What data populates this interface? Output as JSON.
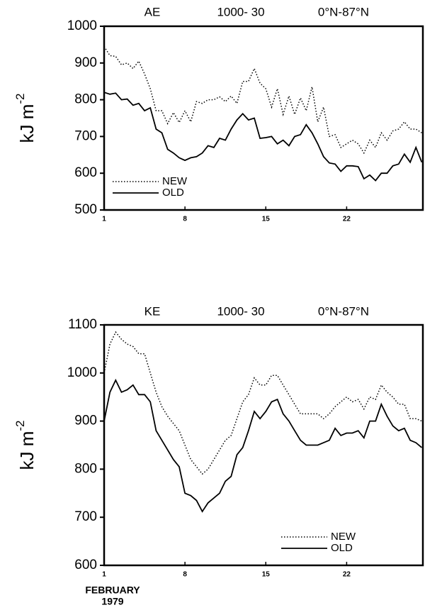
{
  "chart_data": [
    {
      "type": "line",
      "title_parts": [
        "AE",
        "1000- 30",
        "0°N-87°N"
      ],
      "ylabel": "kJ m",
      "ylabel_exponent": "-2",
      "x": [
        1,
        1.5,
        2,
        2.5,
        3,
        3.5,
        4,
        4.5,
        5,
        5.5,
        6,
        6.5,
        7,
        7.5,
        8,
        8.5,
        9,
        9.5,
        10,
        10.5,
        11,
        11.5,
        12,
        12.5,
        13,
        13.5,
        14,
        14.5,
        15,
        15.5,
        16,
        16.5,
        17,
        17.5,
        18,
        18.5,
        19,
        19.5,
        20,
        20.5,
        21,
        21.5,
        22,
        22.5,
        23,
        23.5,
        24,
        24.5,
        25,
        25.5,
        26,
        26.5,
        27,
        27.5,
        28,
        28.5
      ],
      "series": [
        {
          "name": "NEW",
          "color": "#000000",
          "dash": "dotted",
          "values": [
            945,
            920,
            918,
            895,
            900,
            885,
            905,
            870,
            830,
            770,
            770,
            735,
            765,
            738,
            770,
            740,
            795,
            790,
            800,
            800,
            808,
            795,
            810,
            790,
            850,
            850,
            885,
            845,
            830,
            780,
            830,
            760,
            810,
            760,
            805,
            770,
            835,
            740,
            780,
            700,
            705,
            670,
            680,
            690,
            680,
            655,
            690,
            670,
            710,
            690,
            715,
            720,
            740,
            720,
            720,
            710
          ]
        },
        {
          "name": "OLD",
          "color": "#000000",
          "dash": "solid",
          "values": [
            820,
            815,
            818,
            800,
            802,
            785,
            790,
            770,
            778,
            720,
            710,
            665,
            655,
            642,
            635,
            642,
            645,
            655,
            675,
            670,
            695,
            690,
            720,
            745,
            762,
            745,
            750,
            695,
            697,
            700,
            680,
            690,
            675,
            700,
            705,
            732,
            710,
            680,
            645,
            628,
            625,
            605,
            620,
            620,
            618,
            585,
            595,
            580,
            600,
            600,
            620,
            625,
            652,
            630,
            670,
            630
          ]
        }
      ],
      "xlim": [
        1,
        28.6
      ],
      "xticks": [
        1,
        8,
        15,
        22
      ],
      "ylim": [
        500,
        1000
      ],
      "yticks": [
        500,
        600,
        700,
        800,
        900,
        1000
      ],
      "legend": "lower left"
    },
    {
      "type": "line",
      "title_parts": [
        "KE",
        "1000- 30",
        "0°N-87°N"
      ],
      "ylabel": "kJ m",
      "ylabel_exponent": "-2",
      "xlabel": [
        "FEBRUARY",
        "1979"
      ],
      "x": [
        1,
        1.5,
        2,
        2.5,
        3,
        3.5,
        4,
        4.5,
        5,
        5.5,
        6,
        6.5,
        7,
        7.5,
        8,
        8.5,
        9,
        9.5,
        10,
        10.5,
        11,
        11.5,
        12,
        12.5,
        13,
        13.5,
        14,
        14.5,
        15,
        15.5,
        16,
        16.5,
        17,
        17.5,
        18,
        18.5,
        19,
        19.5,
        20,
        20.5,
        21,
        21.5,
        22,
        22.5,
        23,
        23.5,
        24,
        24.5,
        25,
        25.5,
        26,
        26.5,
        27,
        27.5,
        28,
        28.5
      ],
      "series": [
        {
          "name": "NEW",
          "color": "#000000",
          "dash": "dotted",
          "values": [
            1000,
            1060,
            1085,
            1070,
            1060,
            1055,
            1040,
            1040,
            1000,
            960,
            930,
            910,
            895,
            880,
            850,
            820,
            805,
            790,
            800,
            820,
            840,
            860,
            870,
            905,
            940,
            955,
            990,
            975,
            975,
            995,
            995,
            975,
            955,
            935,
            915,
            915,
            915,
            915,
            905,
            915,
            930,
            940,
            950,
            940,
            945,
            925,
            950,
            945,
            975,
            960,
            950,
            935,
            935,
            905,
            905,
            900
          ]
        },
        {
          "name": "OLD",
          "color": "#000000",
          "dash": "solid",
          "values": [
            900,
            960,
            985,
            960,
            965,
            975,
            955,
            955,
            940,
            880,
            860,
            840,
            820,
            805,
            750,
            745,
            735,
            712,
            730,
            740,
            750,
            775,
            785,
            830,
            845,
            880,
            920,
            905,
            920,
            940,
            945,
            915,
            900,
            880,
            860,
            850,
            850,
            850,
            855,
            860,
            885,
            870,
            875,
            875,
            880,
            865,
            900,
            900,
            935,
            910,
            890,
            880,
            885,
            860,
            855,
            845
          ]
        }
      ],
      "xlim": [
        1,
        28.6
      ],
      "xticks": [
        1,
        8,
        15,
        22
      ],
      "ylim": [
        600,
        1100
      ],
      "yticks": [
        600,
        700,
        800,
        900,
        1000,
        1100
      ],
      "legend": "lower right"
    }
  ]
}
